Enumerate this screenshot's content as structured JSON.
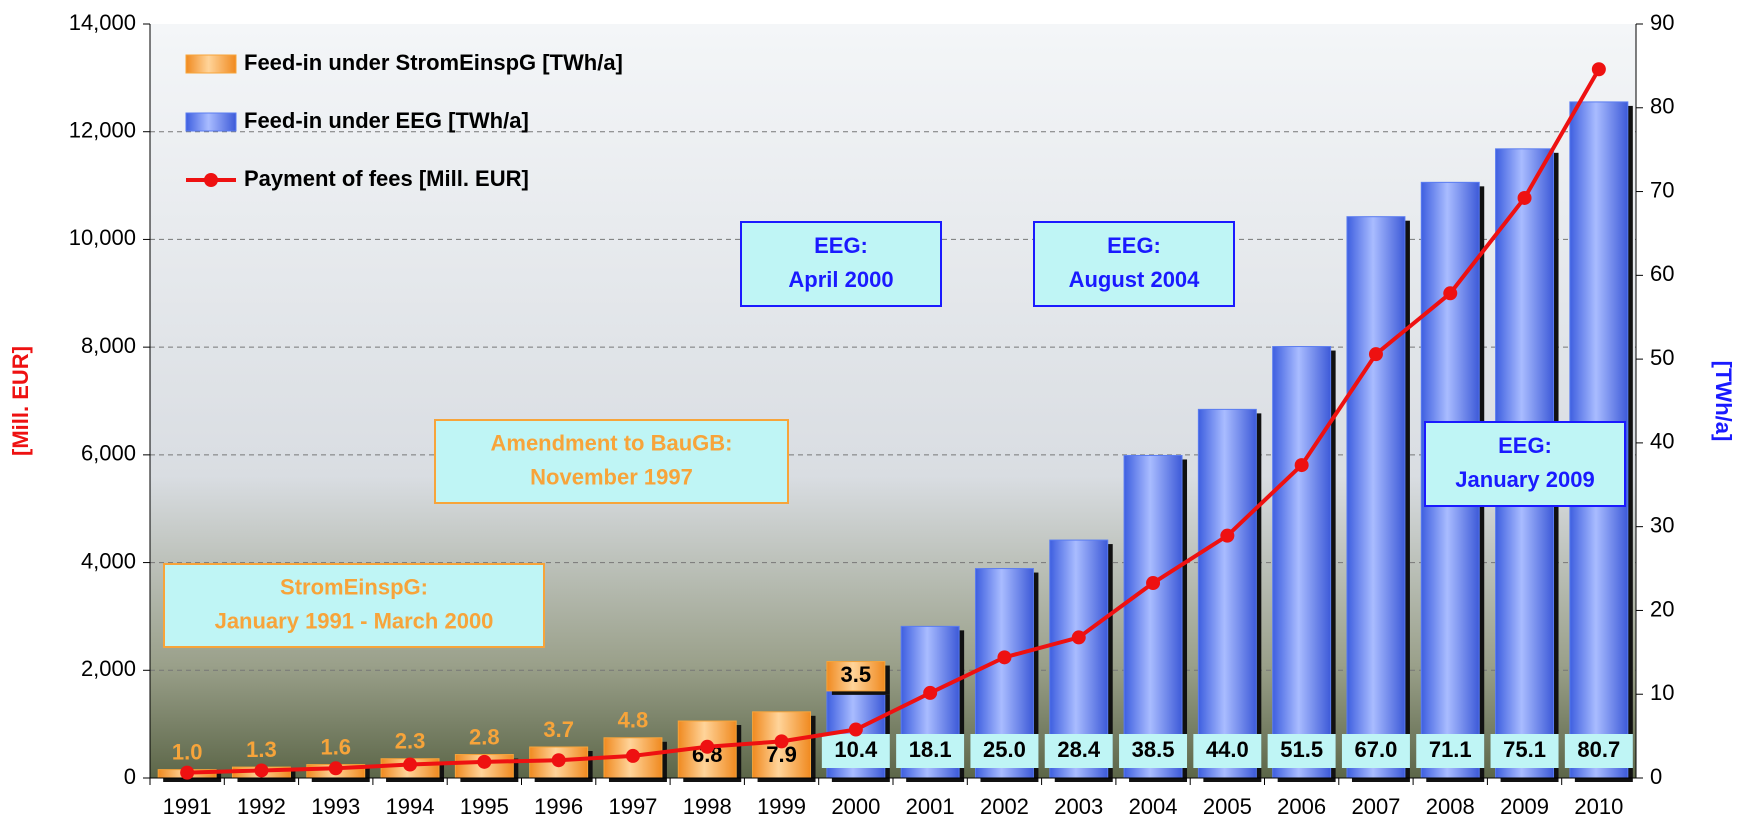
{
  "chart_data": {
    "type": "bar-line",
    "categories": [
      "1991",
      "1992",
      "1993",
      "1994",
      "1995",
      "1996",
      "1997",
      "1998",
      "1999",
      "2000",
      "2001",
      "2002",
      "2003",
      "2004",
      "2005",
      "2006",
      "2007",
      "2008",
      "2009",
      "2010"
    ],
    "series": [
      {
        "name": "Feed-in under StromEinspG [TWh/a]",
        "type": "bar",
        "axis": "y2",
        "color": "#f7a43a",
        "values": [
          1.0,
          1.3,
          1.6,
          2.3,
          2.8,
          3.7,
          4.8,
          6.8,
          7.9,
          3.5,
          null,
          null,
          null,
          null,
          null,
          null,
          null,
          null,
          null,
          null
        ],
        "value_labels": [
          "1.0",
          "1.3",
          "1.6",
          "2.3",
          "2.8",
          "3.7",
          "4.8",
          "6.8",
          "7.9",
          "3.5",
          null,
          null,
          null,
          null,
          null,
          null,
          null,
          null,
          null,
          null
        ]
      },
      {
        "name": "Feed-in under EEG [TWh/a]",
        "type": "bar",
        "axis": "y2",
        "color": "#5a7cf0",
        "values": [
          null,
          null,
          null,
          null,
          null,
          null,
          null,
          null,
          null,
          10.4,
          18.1,
          25.0,
          28.4,
          38.5,
          44.0,
          51.5,
          67.0,
          71.1,
          75.1,
          80.7
        ],
        "value_labels": [
          null,
          null,
          null,
          null,
          null,
          null,
          null,
          null,
          null,
          "10.4",
          "18.1",
          "25.0",
          "28.4",
          "38.5",
          "44.0",
          "51.5",
          "67.0",
          "71.1",
          "75.1",
          "80.7"
        ]
      },
      {
        "name": "Payment of fees [Mill. EUR]",
        "type": "line",
        "axis": "y",
        "color": "#ee1111",
        "values": [
          100,
          140,
          180,
          250,
          300,
          330,
          410,
          580,
          680,
          900,
          1580,
          2240,
          2610,
          3620,
          4500,
          5810,
          7870,
          9000,
          10770,
          13160
        ]
      }
    ],
    "ylabel": "[Mill. EUR]",
    "y2label": "[TWh/a]",
    "ylim": [
      0,
      14000
    ],
    "yticks": [
      0,
      {
        "value": 2000,
        "label": "2,000"
      },
      {
        "value": 4000,
        "label": "4,000"
      },
      {
        "value": 6000,
        "label": "6,000"
      },
      {
        "value": 8000,
        "label": "8,000"
      },
      {
        "value": 10000,
        "label": "10,000"
      },
      {
        "value": 12000,
        "label": "12,000"
      },
      {
        "value": 14000,
        "label": "14,000"
      }
    ],
    "y2lim": [
      0,
      90
    ],
    "y2ticks": [
      0,
      10,
      20,
      30,
      40,
      50,
      60,
      70,
      80,
      90
    ],
    "grid": true,
    "legend": "upper left",
    "annotations": [
      {
        "lines": [
          "StromEinspG:",
          "January 1991 - March 2000"
        ],
        "color": "#f7a43a"
      },
      {
        "lines": [
          "Amendment to BauGB:",
          "November 1997"
        ],
        "color": "#f7a43a"
      },
      {
        "lines": [
          "EEG:",
          "April 2000"
        ],
        "color": "#1a1aff"
      },
      {
        "lines": [
          "EEG:",
          "August 2004"
        ],
        "color": "#1a1aff"
      },
      {
        "lines": [
          "EEG:",
          "January 2009"
        ],
        "color": "#1a1aff"
      }
    ]
  }
}
